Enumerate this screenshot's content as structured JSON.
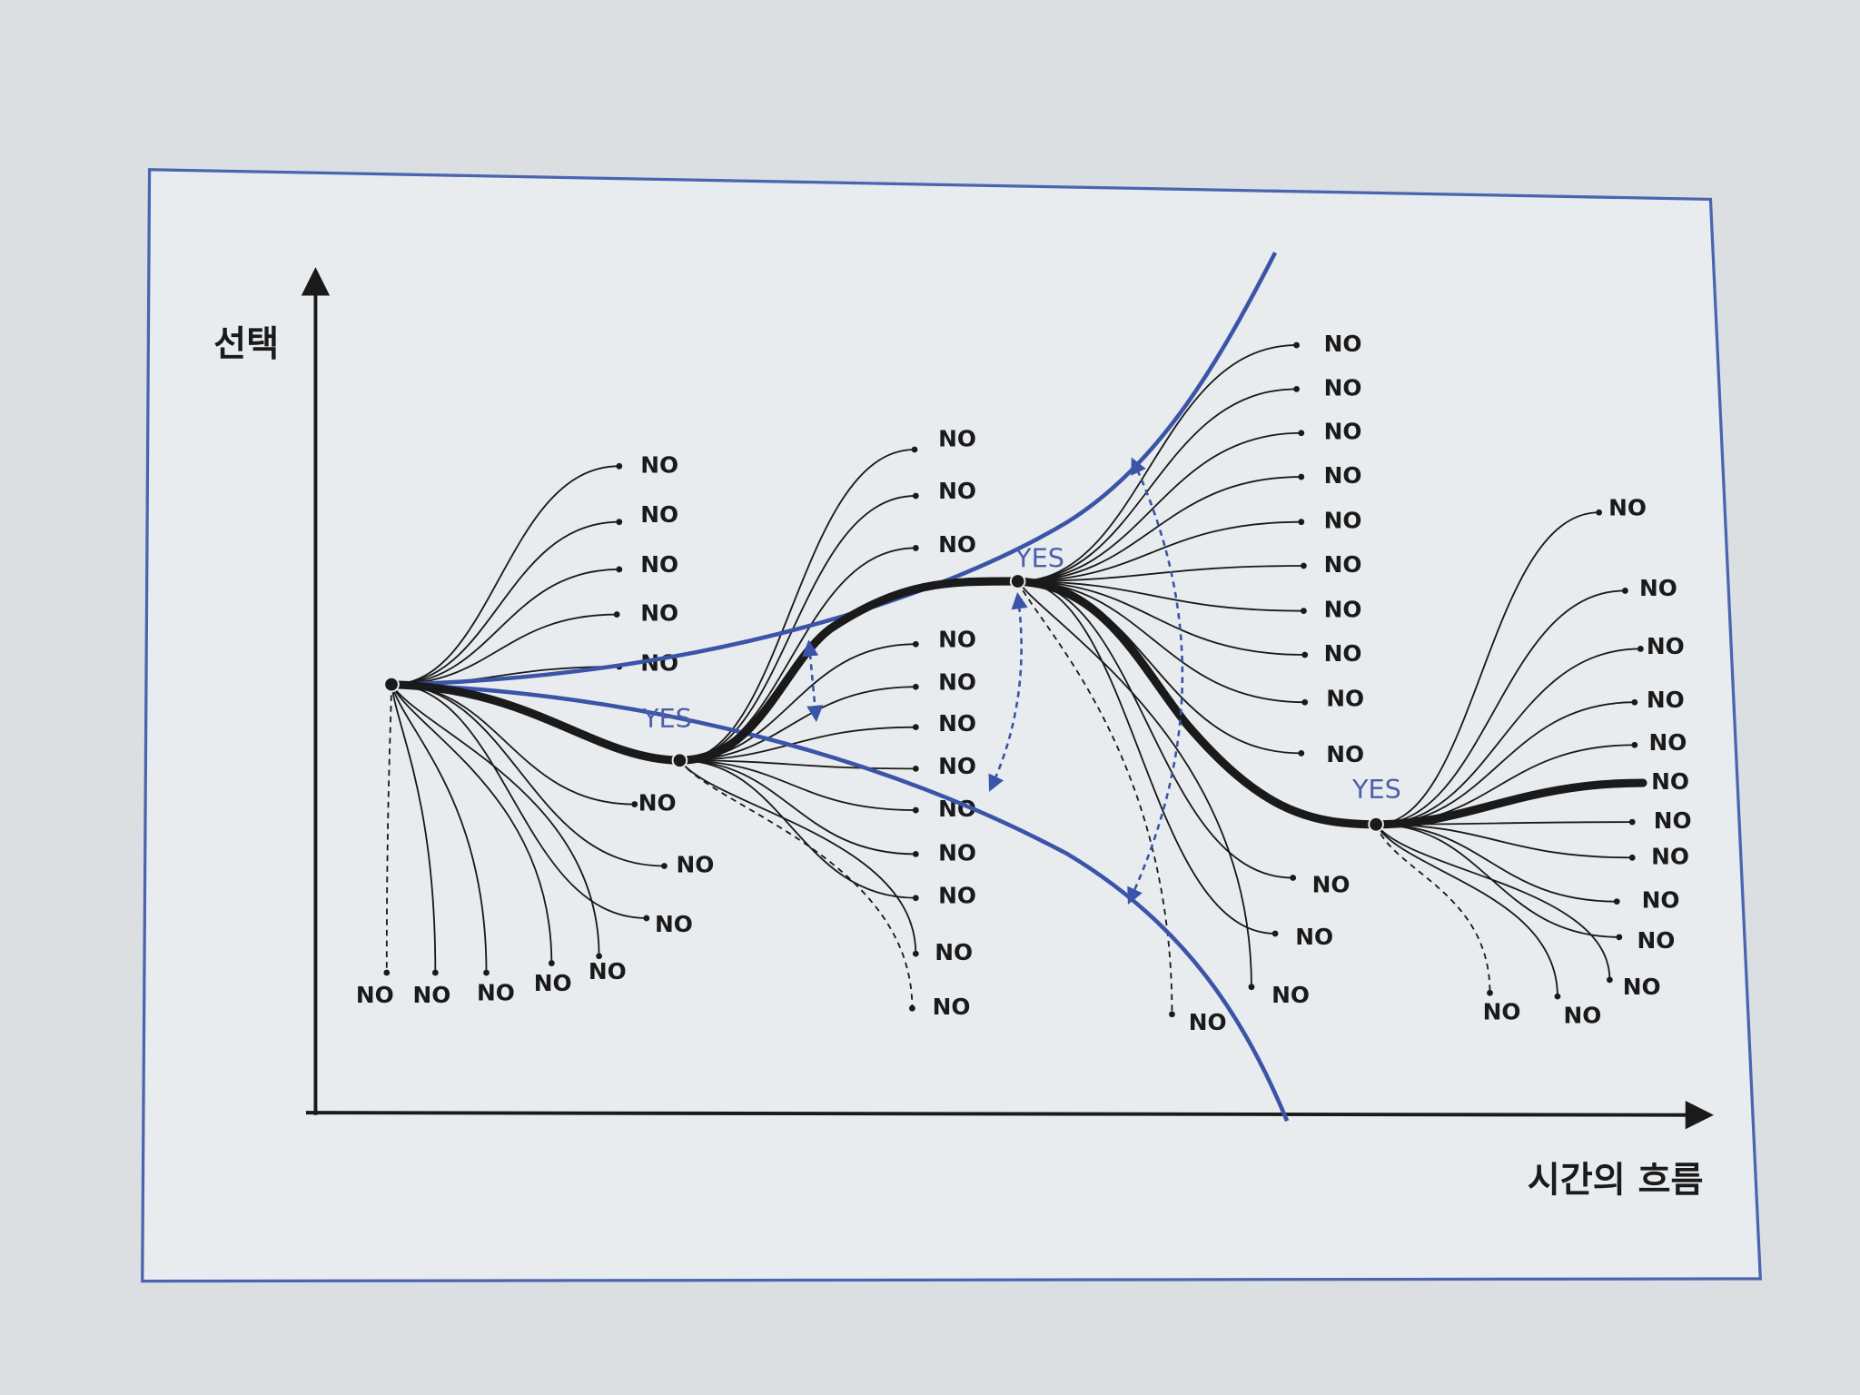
{
  "y_axis_label": "선택",
  "x_axis_label": "시간의 흐름",
  "branches": [
    {
      "rejected": [
        "NO",
        "NO",
        "NO",
        "NO",
        "NO",
        "NO",
        "NO",
        "NO",
        "NO",
        "NO",
        "NO",
        "NO",
        "NO"
      ]
    },
    {
      "choice": "YES",
      "rejected": [
        "NO",
        "NO",
        "NO",
        "NO",
        "NO",
        "NO",
        "NO",
        "NO",
        "NO",
        "NO",
        "NO",
        "NO"
      ]
    },
    {
      "choice": "YES",
      "rejected": [
        "NO",
        "NO",
        "NO",
        "NO",
        "NO",
        "NO",
        "NO",
        "NO",
        "NO",
        "NO",
        "NO",
        "NO",
        "NO",
        "NO"
      ]
    },
    {
      "choice": "YES",
      "rejected": [
        "NO",
        "NO",
        "NO",
        "NO",
        "NO",
        "NO",
        "NO",
        "NO",
        "NO",
        "NO",
        "NO",
        "NO",
        "NO"
      ]
    }
  ]
}
